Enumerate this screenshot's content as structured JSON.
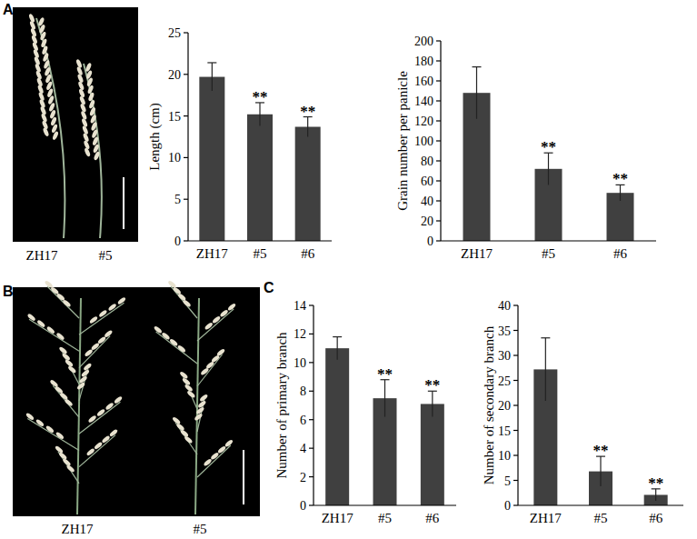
{
  "panel_labels": [
    "A",
    "B",
    "C"
  ],
  "photos": [
    {
      "labels": [
        "ZH17",
        "#5"
      ]
    },
    {
      "labels": [
        "ZH17",
        "#5"
      ]
    }
  ],
  "chart_data": [
    {
      "type": "bar",
      "y_label": "Length (cm)",
      "categories": [
        "ZH17",
        "#5",
        "#6"
      ],
      "values": [
        19.7,
        15.2,
        13.7
      ],
      "errors": [
        1.7,
        1.4,
        1.2
      ],
      "significance": [
        null,
        "**",
        "**"
      ],
      "color": "#404040",
      "ylim": [
        0,
        25
      ],
      "yticks": [
        0,
        5,
        10,
        15,
        20,
        25
      ],
      "grid": false
    },
    {
      "type": "bar",
      "y_label": "Grain number per panicle",
      "categories": [
        "ZH17",
        "#5",
        "#6"
      ],
      "values": [
        148,
        72,
        48
      ],
      "errors": [
        26,
        16,
        8
      ],
      "significance": [
        null,
        "**",
        "**"
      ],
      "color": "#404040",
      "ylim": [
        0,
        200
      ],
      "yticks": [
        0,
        20,
        40,
        60,
        80,
        100,
        120,
        140,
        160,
        180,
        200
      ],
      "grid": false
    },
    {
      "type": "bar",
      "y_label": "Number of primary branch",
      "categories": [
        "ZH17",
        "#5",
        "#6"
      ],
      "values": [
        11,
        7.5,
        7.1
      ],
      "errors": [
        0.8,
        1.3,
        0.9
      ],
      "significance": [
        null,
        "**",
        "**"
      ],
      "color": "#404040",
      "ylim": [
        0,
        14
      ],
      "yticks": [
        0,
        2,
        4,
        6,
        8,
        10,
        12,
        14
      ],
      "grid": false
    },
    {
      "type": "bar",
      "y_label": "Number of secondary branch",
      "categories": [
        "ZH17",
        "#5",
        "#6"
      ],
      "values": [
        27.2,
        6.8,
        2.1
      ],
      "errors": [
        6.3,
        3,
        1.2
      ],
      "significance": [
        null,
        "**",
        "**"
      ],
      "color": "#404040",
      "ylim": [
        0,
        40
      ],
      "yticks": [
        0,
        5,
        10,
        15,
        20,
        25,
        30,
        35,
        40
      ],
      "grid": false
    }
  ]
}
